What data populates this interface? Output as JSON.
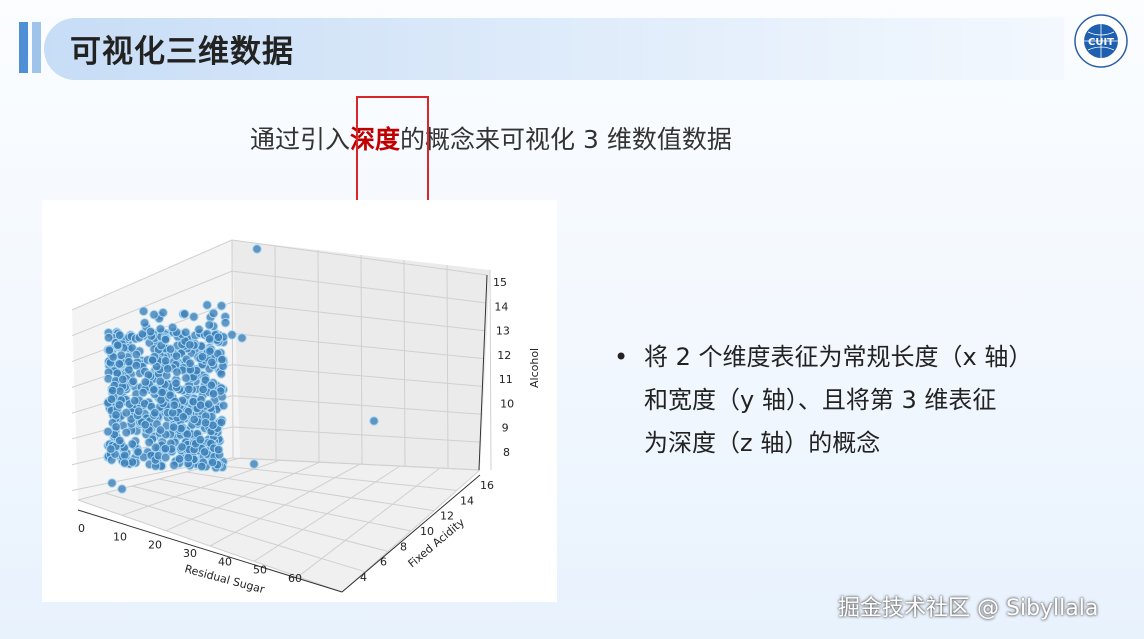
{
  "header": {
    "title": "可视化三维数据"
  },
  "logo": {
    "text": "CUIT",
    "icon": "university-seal"
  },
  "subtitle": {
    "before": "通过引入",
    "highlight": "深度",
    "after": "的概念来可视化 3 维数值数据",
    "highlight_color": "#c00000"
  },
  "bullet": {
    "lines": [
      "将 2 个维度表征为常规长度（x 轴）",
      "和宽度（y 轴）、且将第 3 维表征",
      "为深度（z 轴）的概念"
    ]
  },
  "watermark": "掘金技术社区 @ Sibyllala",
  "chart_data": {
    "type": "scatter",
    "projection": "3d",
    "xlabel": "Residual Sugar",
    "ylabel": "Fixed Acidity",
    "zlabel": "Alcohol",
    "xticks": [
      "0",
      "10",
      "20",
      "30",
      "40",
      "50",
      "60"
    ],
    "yticks": [
      "4",
      "6",
      "8",
      "10",
      "12",
      "14",
      "16"
    ],
    "zticks": [
      "8",
      "9",
      "10",
      "11",
      "12",
      "13",
      "14",
      "15"
    ],
    "xlim": [
      0,
      65
    ],
    "ylim": [
      4,
      16
    ],
    "zlim": [
      8,
      15
    ],
    "color": "#3f7fb6",
    "grid": true
  }
}
